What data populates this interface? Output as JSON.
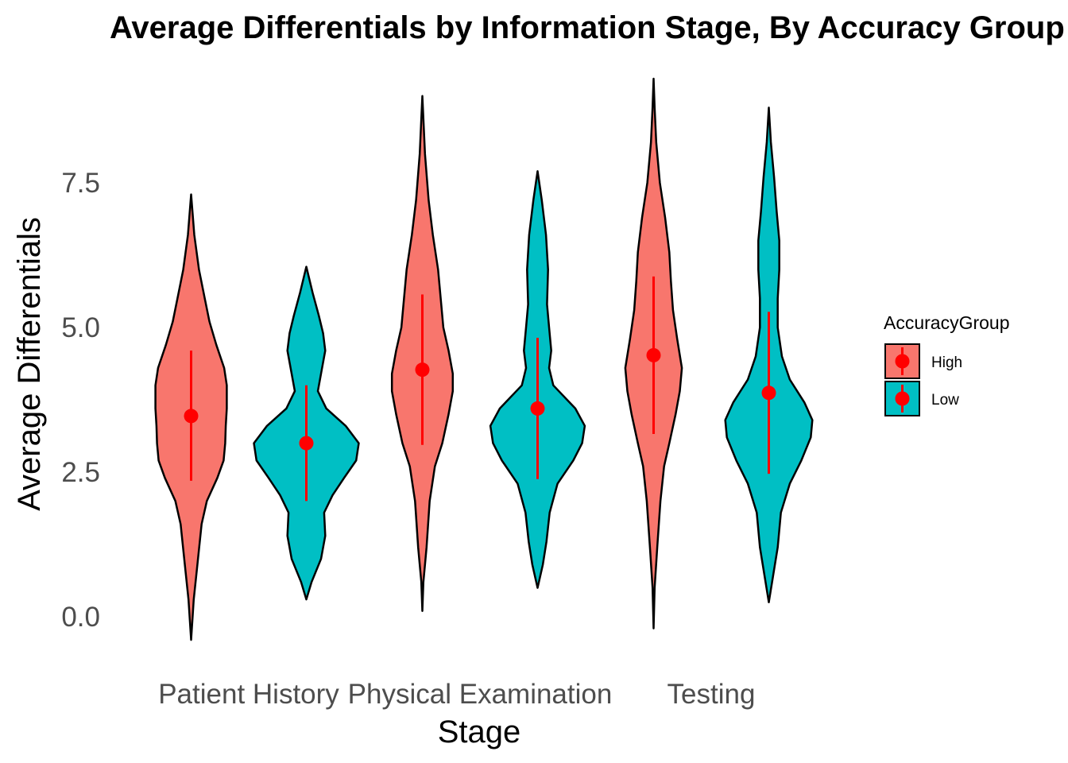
{
  "chart_data": {
    "type": "violin",
    "title": "Average Differentials by Information Stage, By Accuracy Group",
    "xlabel": "Stage",
    "ylabel": "Average Differentials",
    "categories": [
      "Patient History",
      "Physical Examination",
      "Testing"
    ],
    "y_ticks": [
      "0.0",
      "2.5",
      "5.0",
      "7.5"
    ],
    "y_tick_values": [
      0,
      2.5,
      5,
      7.5
    ],
    "ylim": [
      -0.6,
      9.6
    ],
    "grid": false,
    "legend": {
      "title": "AccuracyGroup",
      "position": "right",
      "entries": [
        "High",
        "Low"
      ]
    },
    "colors": {
      "High": "#F8766D",
      "Low": "#00BFC4",
      "summary": "#FF0000",
      "outline": "#000000"
    },
    "series": [
      {
        "name": "High",
        "range": [
          [
            -0.4,
            7.3
          ],
          [
            0.1,
            9.0
          ],
          [
            -0.2,
            9.3
          ]
        ],
        "mean": [
          3.47,
          4.27,
          4.52
        ],
        "sd_low": [
          2.35,
          2.97,
          3.16
        ],
        "sd_high": [
          4.6,
          5.57,
          5.88
        ]
      },
      {
        "name": "Low",
        "range": [
          [
            0.3,
            6.05
          ],
          [
            0.5,
            7.7
          ],
          [
            0.25,
            8.8
          ]
        ],
        "mean": [
          3.0,
          3.6,
          3.87
        ],
        "sd_low": [
          2.0,
          2.38,
          2.47
        ],
        "sd_high": [
          4.0,
          4.82,
          5.27
        ]
      }
    ]
  }
}
